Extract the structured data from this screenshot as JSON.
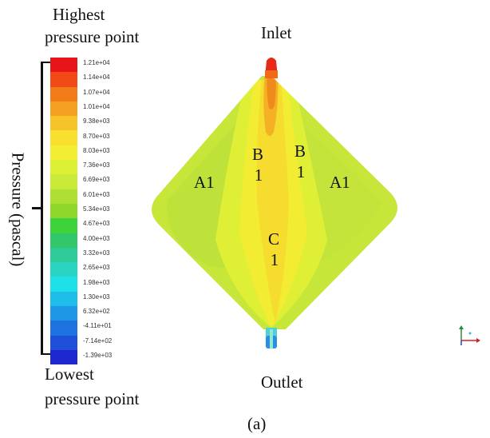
{
  "labels": {
    "highest_line1": "Highest",
    "highest_line2": "pressure point",
    "lowest_line1": "Lowest",
    "lowest_line2": "pressure point",
    "axis_label": "Pressure (pascal)",
    "inlet": "Inlet",
    "outlet": "Outlet",
    "caption": "(a)"
  },
  "regions": {
    "a1_left": "A1",
    "a1_right": "A1",
    "b1_left_l1": "B",
    "b1_left_l2": "1",
    "b1_right_l1": "B",
    "b1_right_l2": "1",
    "c1_l1": "C",
    "c1_l2": "1"
  },
  "legend": {
    "ticks": [
      "1.21e+04",
      "1.14e+04",
      "1.07e+04",
      "1.01e+04",
      "9.38e+03",
      "8.70e+03",
      "8.03e+03",
      "7.36e+03",
      "6.69e+03",
      "6.01e+03",
      "5.34e+03",
      "4.67e+03",
      "4.00e+03",
      "3.32e+03",
      "2.65e+03",
      "1.98e+03",
      "1.30e+03",
      "6.32e+02",
      "-4.11e+01",
      "-7.14e+02",
      "-1.39e+03"
    ],
    "colors": [
      "#e8141a",
      "#f24a16",
      "#f27c17",
      "#f4a021",
      "#f7c32a",
      "#f9df2e",
      "#f1ee33",
      "#dcf035",
      "#c9ea37",
      "#aee033",
      "#8ed82c",
      "#3ed23b",
      "#32c86a",
      "#2ecb98",
      "#29d4c2",
      "#1ee0e6",
      "#1fbde9",
      "#1e98e6",
      "#1f73e0",
      "#1d4fd8",
      "#1d26cf"
    ]
  }
}
